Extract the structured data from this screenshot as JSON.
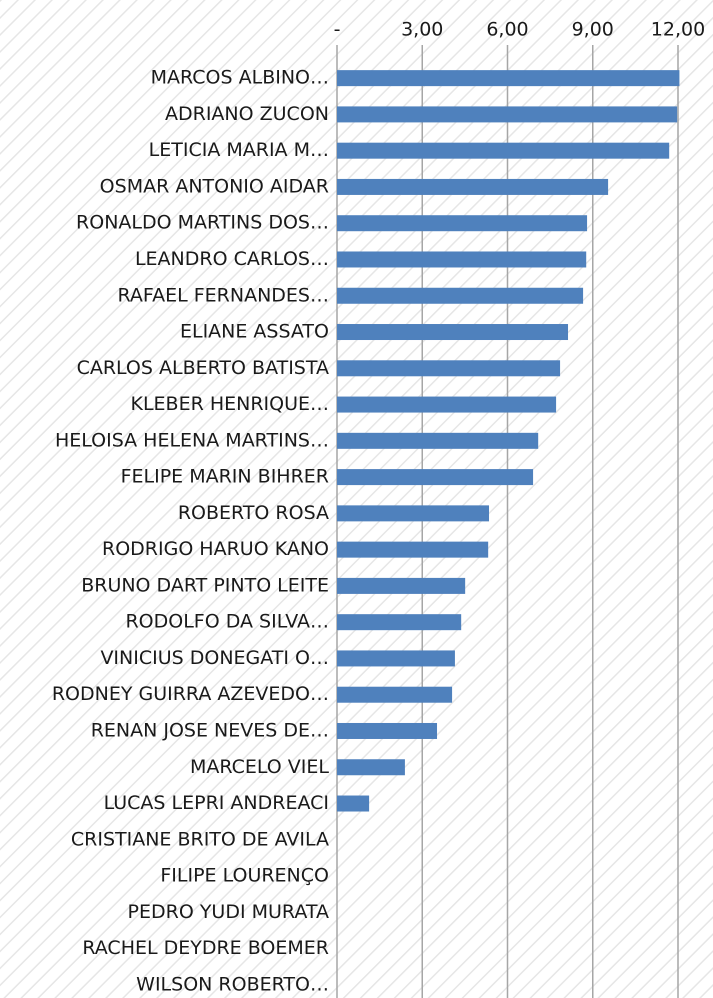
{
  "chart_data": {
    "type": "bar",
    "orientation": "horizontal",
    "categories": [
      "MARCOS ALBINO…",
      "ADRIANO ZUCON",
      "LETICIA MARIA M…",
      "OSMAR ANTONIO AIDAR",
      "RONALDO MARTINS DOS…",
      "LEANDRO CARLOS…",
      "RAFAEL FERNANDES…",
      "ELIANE ASSATO",
      "CARLOS ALBERTO BATISTA",
      "KLEBER HENRIQUE…",
      "HELOISA HELENA MARTINS…",
      "FELIPE MARIN BIHRER",
      "ROBERTO ROSA",
      "RODRIGO HARUO KANO",
      "BRUNO DART PINTO LEITE",
      "RODOLFO DA SILVA…",
      "VINICIUS DONEGATI O…",
      "RODNEY GUIRRA AZEVEDO…",
      "RENAN JOSE NEVES DE…",
      "MARCELO VIEL",
      "LUCAS LEPRI ANDREACI",
      "CRISTIANE BRITO DE AVILA",
      "FILIPE LOURENÇO",
      "PEDRO YUDI MURATA",
      "RACHEL DEYDRE BOEMER",
      "WILSON ROBERTO…"
    ],
    "values": [
      12.05,
      11.97,
      11.69,
      9.54,
      8.8,
      8.77,
      8.66,
      8.13,
      7.85,
      7.71,
      7.08,
      6.9,
      5.35,
      5.32,
      4.51,
      4.37,
      4.15,
      4.05,
      3.52,
      2.39,
      1.13,
      0,
      0,
      0,
      0,
      0
    ],
    "color": "#4f81bd",
    "xlim": [
      0,
      12
    ],
    "xticks": [
      {
        "value": 0,
        "label": "-"
      },
      {
        "value": 3,
        "label": "3,00"
      },
      {
        "value": 6,
        "label": "6,00"
      },
      {
        "value": 9,
        "label": "9,00"
      },
      {
        "value": 12,
        "label": "12,00"
      }
    ],
    "grid": true
  }
}
